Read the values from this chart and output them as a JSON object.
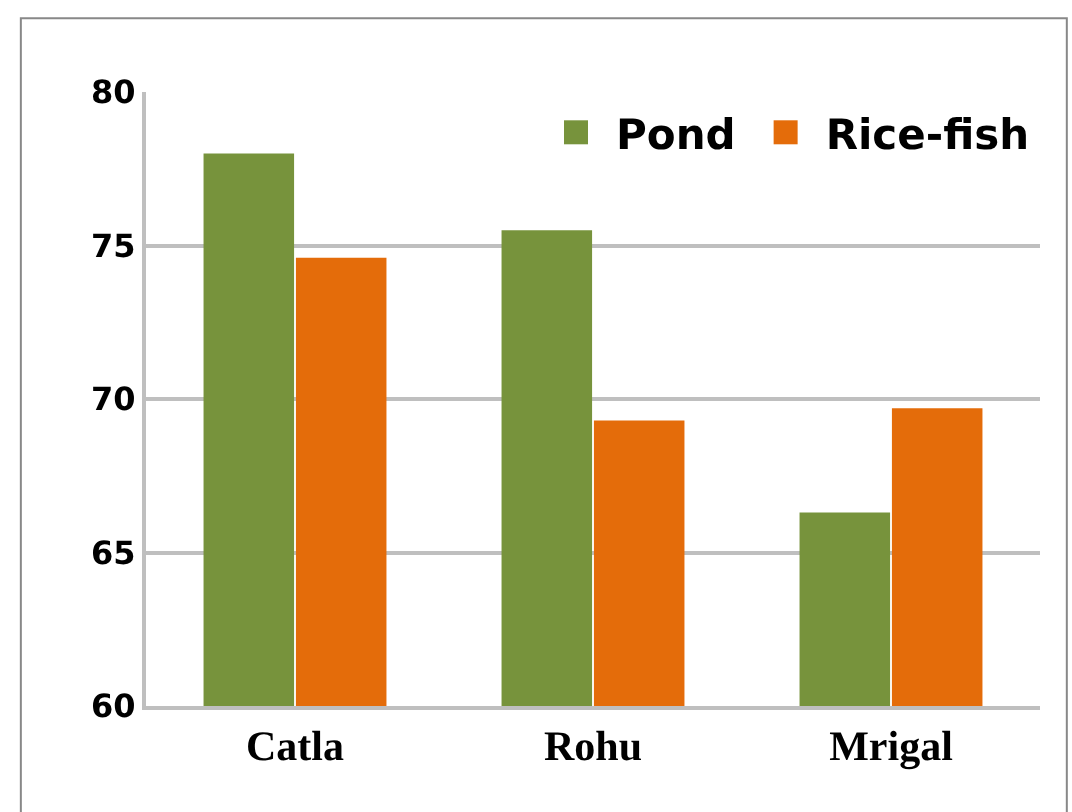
{
  "chart_data": {
    "type": "bar",
    "categories": [
      "Catla",
      "Rohu",
      "Mrigal"
    ],
    "series": [
      {
        "name": "Pond",
        "color": "#77933c",
        "values": [
          78.0,
          75.5,
          66.3
        ]
      },
      {
        "name": "Rice-fish",
        "color": "#e46c0a",
        "values": [
          74.6,
          69.3,
          69.7
        ]
      }
    ],
    "ylim": [
      60,
      80
    ],
    "yticks": [
      60,
      65,
      70,
      75,
      80
    ],
    "grid": "y",
    "legend": "top right"
  }
}
